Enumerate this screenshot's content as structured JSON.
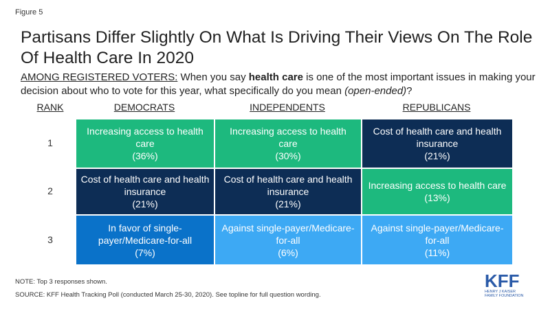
{
  "figure_label": "Figure 5",
  "title": "Partisans Differ Slightly On What Is Driving Their Views On The Role Of Health Care In 2020",
  "question": {
    "lead": "AMONG REGISTERED VOTERS:",
    "part1": " When you say ",
    "bold": "health care",
    "part2": " is one of the most important issues in making your decision about who to vote for this year, what specifically do you mean ",
    "italic": "(open-ended)",
    "part3": "?"
  },
  "chart_data": {
    "type": "table",
    "rank_header": "RANK",
    "columns": [
      "DEMOCRATS",
      "INDEPENDENTS",
      "REPUBLICANS"
    ],
    "ranks": [
      "1",
      "2",
      "3"
    ],
    "rows": [
      [
        {
          "label": "Increasing access to health care",
          "pct": "(36%)",
          "value": 36,
          "color": "#1db97e"
        },
        {
          "label": "Increasing access to health care",
          "pct": "(30%)",
          "value": 30,
          "color": "#1db97e"
        },
        {
          "label": "Cost of health care and health insurance",
          "pct": "(21%)",
          "value": 21,
          "color": "#0d2d55"
        }
      ],
      [
        {
          "label": "Cost of health care and health insurance",
          "pct": "(21%)",
          "value": 21,
          "color": "#0d2d55"
        },
        {
          "label": "Cost of health care and health insurance",
          "pct": "(21%)",
          "value": 21,
          "color": "#0d2d55"
        },
        {
          "label": "Increasing access to health care",
          "pct": "(13%)",
          "value": 13,
          "color": "#1db97e"
        }
      ],
      [
        {
          "label": "In favor of single-payer/Medicare-for-all",
          "pct": "(7%)",
          "value": 7,
          "color": "#0a72c9"
        },
        {
          "label": "Against single-payer/Medicare-for-all",
          "pct": "(6%)",
          "value": 6,
          "color": "#3da9f4"
        },
        {
          "label": "Against single-payer/Medicare-for-all",
          "pct": "(11%)",
          "value": 11,
          "color": "#3da9f4"
        }
      ]
    ]
  },
  "notes": {
    "note": "NOTE: Top 3 responses shown.",
    "source": "SOURCE: KFF Health Tracking Poll (conducted March 25-30, 2020). See topline for full question wording."
  },
  "logo": {
    "mark": "KFF",
    "line1": "HENRY J KAISER",
    "line2": "FAMILY FOUNDATION",
    "color": "#2a5aa8"
  }
}
